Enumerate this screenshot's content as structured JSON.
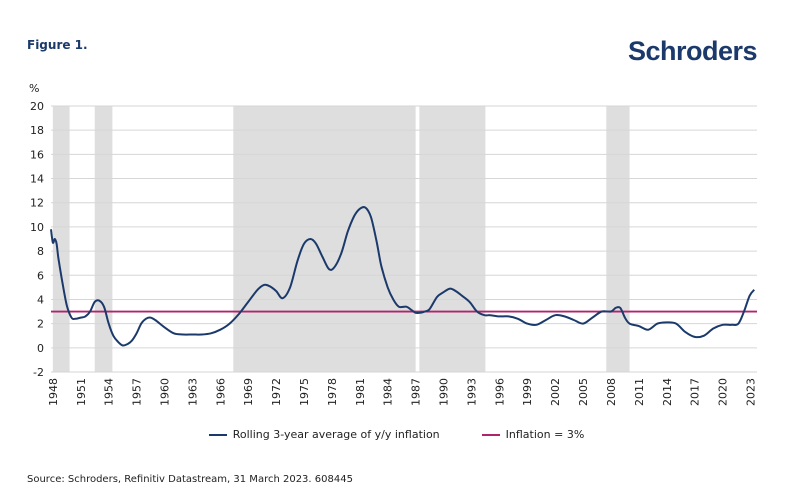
{
  "figure_label": "Figure 1.",
  "brand": "Schroders",
  "colors": {
    "inflation_line": "#1b3a6b",
    "threshold_line": "#b0246d",
    "recession_shade": "#dedede",
    "brand": "#1b3a6b"
  },
  "chart_data": {
    "type": "line",
    "title": "",
    "ylabel": "%",
    "xlabel": "",
    "ylim": [
      -2,
      20
    ],
    "xlim": [
      1947.8,
      2023.7
    ],
    "yticks": [
      -2,
      0,
      2,
      4,
      6,
      8,
      10,
      12,
      14,
      16,
      18,
      20
    ],
    "ytick_labels": [
      "-2",
      "0",
      "2",
      "4",
      "6",
      "8",
      "10",
      "12",
      "14",
      "16",
      "18",
      "20"
    ],
    "xticks": [
      1948,
      1951,
      1954,
      1957,
      1960,
      1963,
      1966,
      1969,
      1972,
      1975,
      1978,
      1981,
      1984,
      1987,
      1990,
      1993,
      1996,
      1999,
      2002,
      2005,
      2008,
      2011,
      2014,
      2017,
      2020,
      2023
    ],
    "xtick_labels": [
      "1948",
      "1951",
      "1954",
      "1957",
      "1960",
      "1963",
      "1966",
      "1969",
      "1972",
      "1975",
      "1978",
      "1981",
      "1984",
      "1987",
      "1990",
      "1993",
      "1996",
      "1999",
      "2002",
      "2005",
      "2008",
      "2011",
      "2014",
      "2017",
      "2020",
      "2023"
    ],
    "shaded_periods": [
      [
        1948.0,
        1949.8
      ],
      [
        1952.5,
        1954.4
      ],
      [
        1967.4,
        1987.0
      ],
      [
        1987.4,
        1994.5
      ],
      [
        2007.5,
        2010.0
      ]
    ],
    "threshold": {
      "name": "Inflation = 3%",
      "value": 3
    },
    "series": [
      {
        "name": "Rolling 3-year average of y/y inflation",
        "x": [
          1947.8,
          1948.0,
          1948.2,
          1948.4,
          1948.6,
          1949.0,
          1949.5,
          1950.0,
          1950.4,
          1951.0,
          1951.5,
          1952.0,
          1952.5,
          1953.0,
          1953.5,
          1954.0,
          1954.5,
          1955.0,
          1955.5,
          1956.0,
          1956.5,
          1957.0,
          1957.5,
          1958.0,
          1958.5,
          1959.0,
          1960.0,
          1961.0,
          1962.0,
          1963.0,
          1964.0,
          1965.0,
          1966.0,
          1967.0,
          1968.0,
          1969.0,
          1970.0,
          1970.7,
          1971.3,
          1972.0,
          1972.7,
          1973.5,
          1974.3,
          1975.0,
          1975.7,
          1976.3,
          1977.0,
          1977.7,
          1978.3,
          1979.0,
          1979.7,
          1980.4,
          1981.0,
          1981.6,
          1982.2,
          1982.8,
          1983.3,
          1984.0,
          1984.6,
          1985.2,
          1986.0,
          1986.6,
          1987.0,
          1987.5,
          1988.0,
          1988.5,
          1989.3,
          1990.0,
          1990.7,
          1991.3,
          1992.0,
          1992.8,
          1993.6,
          1994.4,
          1995.0,
          1996.0,
          1997.0,
          1998.0,
          1999.0,
          2000.0,
          2001.0,
          2002.0,
          2003.0,
          2004.0,
          2005.0,
          2006.0,
          2007.0,
          2008.0,
          2008.5,
          2009.0,
          2009.5,
          2010.0,
          2011.0,
          2012.0,
          2013.0,
          2014.0,
          2015.0,
          2016.0,
          2017.0,
          2018.0,
          2019.0,
          2020.0,
          2021.0,
          2021.7,
          2022.3,
          2022.9,
          2023.4
        ],
        "y": [
          9.8,
          8.7,
          9.0,
          8.6,
          7.4,
          5.5,
          3.5,
          2.5,
          2.4,
          2.5,
          2.6,
          3.0,
          3.8,
          3.9,
          3.4,
          2.0,
          1.0,
          0.5,
          0.2,
          0.3,
          0.6,
          1.2,
          2.0,
          2.4,
          2.5,
          2.3,
          1.7,
          1.2,
          1.1,
          1.1,
          1.1,
          1.2,
          1.5,
          2.0,
          2.8,
          3.8,
          4.8,
          5.2,
          5.1,
          4.7,
          4.1,
          5.0,
          7.2,
          8.6,
          9.0,
          8.6,
          7.5,
          6.5,
          6.7,
          7.8,
          9.6,
          10.9,
          11.5,
          11.6,
          10.8,
          8.8,
          6.8,
          5.0,
          4.0,
          3.4,
          3.4,
          3.1,
          2.9,
          2.9,
          3.0,
          3.2,
          4.2,
          4.6,
          4.9,
          4.7,
          4.3,
          3.8,
          3.0,
          2.7,
          2.7,
          2.6,
          2.6,
          2.4,
          2.0,
          1.9,
          2.3,
          2.7,
          2.6,
          2.3,
          2.0,
          2.5,
          3.0,
          3.0,
          3.3,
          3.3,
          2.5,
          2.0,
          1.8,
          1.5,
          2.0,
          2.1,
          2.0,
          1.3,
          0.9,
          1.0,
          1.6,
          1.9,
          1.9,
          2.0,
          3.0,
          4.3,
          4.8
        ]
      }
    ]
  },
  "legend": {
    "series_label": "Rolling 3-year average of y/y inflation",
    "threshold_label": "Inflation = 3%"
  },
  "y_unit": "%",
  "source": "Source: Schroders, Refinitiv Datastream, 31 March 2023. 608445"
}
